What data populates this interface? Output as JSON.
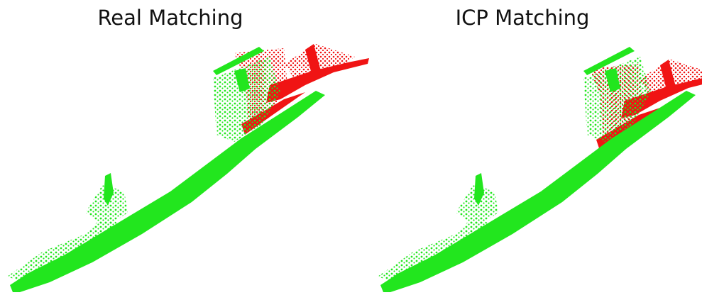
{
  "panels": [
    {
      "title": "Real Matching"
    },
    {
      "title": "ICP Matching"
    }
  ]
}
